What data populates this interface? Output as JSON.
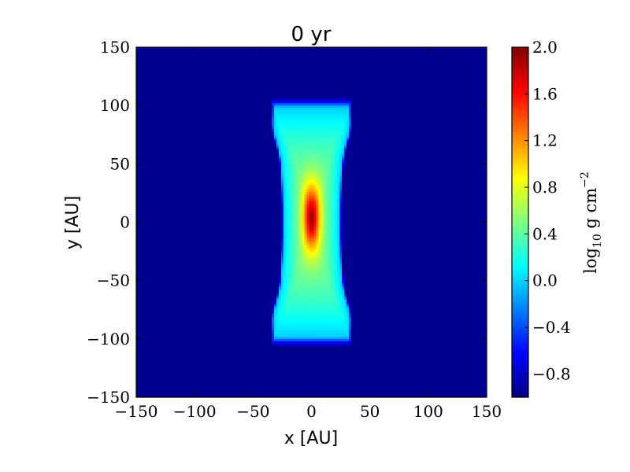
{
  "chart_data": {
    "type": "heatmap",
    "title": "0 yr",
    "xlabel": "x [AU]",
    "ylabel": "y [AU]",
    "xlim": [
      -150,
      150
    ],
    "ylim": [
      -150,
      150
    ],
    "xticks": [
      -150,
      -100,
      -50,
      0,
      50,
      100,
      150
    ],
    "yticks": [
      -150,
      -100,
      -50,
      0,
      50,
      100,
      150
    ],
    "xtick_labels": [
      "−150",
      "−100",
      "−50",
      "0",
      "50",
      "100",
      "150"
    ],
    "ytick_labels": [
      "−150",
      "−100",
      "−50",
      "0",
      "50",
      "100",
      "150"
    ],
    "grid": false,
    "colormap": "jet",
    "colorbar": {
      "label": "log10 g cm−2",
      "label_parts": {
        "base": "log",
        "sub": "10",
        "unit": "g cm",
        "sup": "−2"
      },
      "vmin": -1.0,
      "vmax": 2.0,
      "ticks": [
        -0.8,
        -0.4,
        0.0,
        0.4,
        0.8,
        1.2,
        1.6,
        2.0
      ],
      "tick_labels": [
        "−0.8",
        "−0.4",
        "0.0",
        "0.4",
        "0.8",
        "1.2",
        "1.6",
        "2.0"
      ]
    },
    "field": {
      "background_level": -1.0,
      "structure": "vertical filament centered at x=0",
      "filament_halfwidth_x": 30,
      "filament_halfextent_y": 97,
      "peak_value": 1.9,
      "peak_position": [
        0,
        5
      ],
      "edge_value": 0.0
    }
  }
}
